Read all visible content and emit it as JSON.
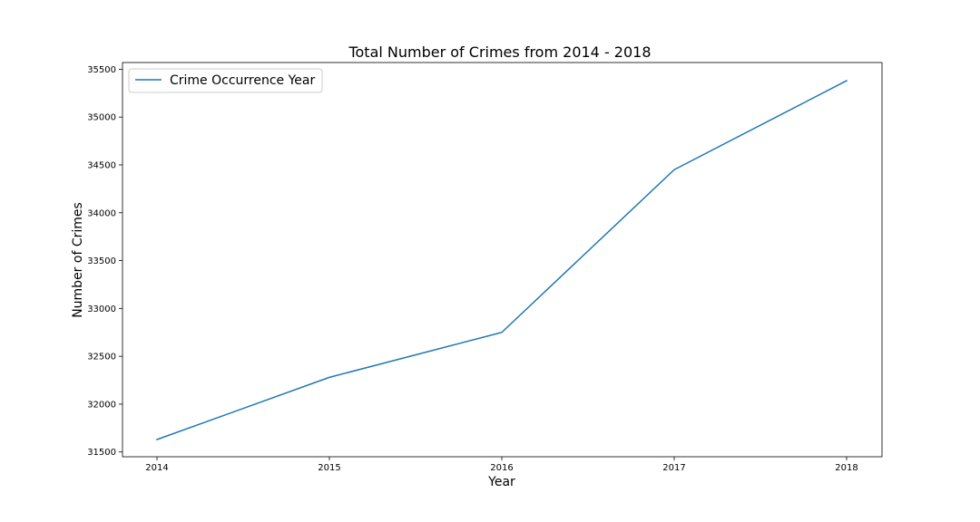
{
  "chart_data": {
    "type": "line",
    "title": "Total Number of Crimes from 2014 - 2018",
    "xlabel": "Year",
    "ylabel": "Number of Crimes",
    "x": [
      "2014",
      "2015",
      "2016",
      "2017",
      "2018"
    ],
    "series": [
      {
        "name": "Crime Occurrence Year",
        "values": [
          31630,
          32280,
          32750,
          34450,
          35380
        ],
        "color": "#1f77b4"
      }
    ],
    "ylim": [
      31450,
      35570
    ],
    "yticks": [
      31500,
      32000,
      32500,
      33000,
      33500,
      34000,
      34500,
      35000,
      35500
    ],
    "grid": false,
    "legend_position": "top-left"
  }
}
